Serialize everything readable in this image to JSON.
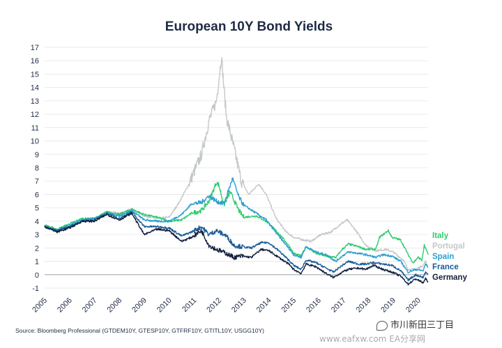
{
  "chart_data": {
    "type": "line",
    "title": "European 10Y Bond Yields",
    "xlabel": "",
    "ylabel": "",
    "x_range": [
      2005,
      2020.4
    ],
    "ylim": [
      -1,
      17
    ],
    "y_ticks": [
      "-1",
      "0",
      "1",
      "2",
      "3",
      "4",
      "5",
      "6",
      "7",
      "8",
      "9",
      "10",
      "11",
      "12",
      "13",
      "14",
      "15",
      "16",
      "17"
    ],
    "x_ticks": [
      "2005",
      "2006",
      "2007",
      "2008",
      "2009",
      "2010",
      "2011",
      "2012",
      "2013",
      "2014",
      "2015",
      "2016",
      "2017",
      "2018",
      "2019",
      "2020"
    ],
    "grid": "horizontal",
    "legend_placement": "right",
    "series": [
      {
        "name": "Italy",
        "color": "#2ecc71",
        "points": [
          [
            2005,
            3.7
          ],
          [
            2005.5,
            3.4
          ],
          [
            2006,
            3.8
          ],
          [
            2006.5,
            4.2
          ],
          [
            2007,
            4.2
          ],
          [
            2007.5,
            4.7
          ],
          [
            2008,
            4.5
          ],
          [
            2008.5,
            4.9
          ],
          [
            2009,
            4.5
          ],
          [
            2009.5,
            4.3
          ],
          [
            2010,
            4.0
          ],
          [
            2010.5,
            4.1
          ],
          [
            2010.9,
            4.6
          ],
          [
            2011.3,
            4.8
          ],
          [
            2011.6,
            5.5
          ],
          [
            2011.9,
            6.9
          ],
          [
            2012,
            6.7
          ],
          [
            2012.2,
            5.2
          ],
          [
            2012.45,
            6.2
          ],
          [
            2012.8,
            4.8
          ],
          [
            2013,
            4.3
          ],
          [
            2013.5,
            4.4
          ],
          [
            2013.9,
            4.0
          ],
          [
            2014.4,
            3.1
          ],
          [
            2014.8,
            2.2
          ],
          [
            2015,
            1.6
          ],
          [
            2015.3,
            1.4
          ],
          [
            2015.5,
            2.1
          ],
          [
            2015.9,
            1.6
          ],
          [
            2016.3,
            1.4
          ],
          [
            2016.7,
            1.3
          ],
          [
            2016.95,
            1.9
          ],
          [
            2017.2,
            2.3
          ],
          [
            2017.6,
            2.1
          ],
          [
            2017.9,
            1.9
          ],
          [
            2018.3,
            1.9
          ],
          [
            2018.45,
            2.8
          ],
          [
            2018.8,
            3.3
          ],
          [
            2018.95,
            2.8
          ],
          [
            2019.3,
            2.6
          ],
          [
            2019.6,
            1.5
          ],
          [
            2019.8,
            0.9
          ],
          [
            2020,
            1.3
          ],
          [
            2020.15,
            1.1
          ],
          [
            2020.25,
            2.2
          ],
          [
            2020.4,
            1.5
          ]
        ]
      },
      {
        "name": "Portugal",
        "color": "#c4c7ca",
        "points": [
          [
            2005,
            3.6
          ],
          [
            2005.5,
            3.3
          ],
          [
            2006,
            3.7
          ],
          [
            2006.5,
            4.1
          ],
          [
            2007,
            4.2
          ],
          [
            2007.5,
            4.7
          ],
          [
            2008,
            4.6
          ],
          [
            2008.5,
            4.9
          ],
          [
            2009,
            4.4
          ],
          [
            2009.5,
            4.2
          ],
          [
            2010,
            4.3
          ],
          [
            2010.4,
            5.4
          ],
          [
            2010.8,
            6.8
          ],
          [
            2011.3,
            9.0
          ],
          [
            2011.6,
            11.5
          ],
          [
            2011.9,
            13.0
          ],
          [
            2012.1,
            16.3
          ],
          [
            2012.3,
            11.8
          ],
          [
            2012.6,
            9.5
          ],
          [
            2012.9,
            7.0
          ],
          [
            2013.2,
            6.0
          ],
          [
            2013.6,
            6.8
          ],
          [
            2013.9,
            6.0
          ],
          [
            2014.3,
            4.2
          ],
          [
            2014.7,
            3.2
          ],
          [
            2015,
            2.8
          ],
          [
            2015.4,
            2.6
          ],
          [
            2015.7,
            2.5
          ],
          [
            2016.1,
            3.0
          ],
          [
            2016.5,
            3.2
          ],
          [
            2016.9,
            3.8
          ],
          [
            2017.15,
            4.1
          ],
          [
            2017.5,
            3.3
          ],
          [
            2017.9,
            2.2
          ],
          [
            2018.3,
            1.8
          ],
          [
            2018.7,
            1.9
          ],
          [
            2019,
            1.7
          ],
          [
            2019.4,
            1.1
          ],
          [
            2019.6,
            0.4
          ],
          [
            2019.9,
            0.4
          ],
          [
            2020.2,
            0.7
          ],
          [
            2020.3,
            1.0
          ],
          [
            2020.4,
            0.5
          ]
        ]
      },
      {
        "name": "Spain",
        "color": "#2b9fd0",
        "points": [
          [
            2005,
            3.6
          ],
          [
            2005.5,
            3.3
          ],
          [
            2006,
            3.7
          ],
          [
            2006.5,
            4.1
          ],
          [
            2007,
            4.2
          ],
          [
            2007.5,
            4.6
          ],
          [
            2008,
            4.4
          ],
          [
            2008.5,
            4.8
          ],
          [
            2009,
            4.1
          ],
          [
            2009.5,
            4.0
          ],
          [
            2010,
            4.0
          ],
          [
            2010.5,
            4.5
          ],
          [
            2010.9,
            5.3
          ],
          [
            2011.3,
            5.4
          ],
          [
            2011.6,
            5.9
          ],
          [
            2011.9,
            5.5
          ],
          [
            2012.2,
            5.3
          ],
          [
            2012.55,
            7.2
          ],
          [
            2012.8,
            5.8
          ],
          [
            2013,
            5.2
          ],
          [
            2013.5,
            4.6
          ],
          [
            2013.9,
            4.1
          ],
          [
            2014.4,
            2.9
          ],
          [
            2014.8,
            2.0
          ],
          [
            2015,
            1.5
          ],
          [
            2015.3,
            1.3
          ],
          [
            2015.5,
            2.1
          ],
          [
            2015.9,
            1.7
          ],
          [
            2016.3,
            1.5
          ],
          [
            2016.7,
            1.0
          ],
          [
            2016.95,
            1.4
          ],
          [
            2017.2,
            1.7
          ],
          [
            2017.6,
            1.6
          ],
          [
            2017.9,
            1.5
          ],
          [
            2018.3,
            1.3
          ],
          [
            2018.6,
            1.5
          ],
          [
            2018.95,
            1.4
          ],
          [
            2019.3,
            1.0
          ],
          [
            2019.6,
            0.2
          ],
          [
            2019.9,
            0.4
          ],
          [
            2020.2,
            0.3
          ],
          [
            2020.3,
            0.8
          ],
          [
            2020.4,
            0.6
          ]
        ]
      },
      {
        "name": "France",
        "color": "#1a5c97",
        "points": [
          [
            2005,
            3.6
          ],
          [
            2005.5,
            3.3
          ],
          [
            2006,
            3.6
          ],
          [
            2006.5,
            4.0
          ],
          [
            2007,
            4.1
          ],
          [
            2007.5,
            4.6
          ],
          [
            2008,
            4.2
          ],
          [
            2008.5,
            4.7
          ],
          [
            2009,
            3.6
          ],
          [
            2009.5,
            3.6
          ],
          [
            2010,
            3.5
          ],
          [
            2010.5,
            2.9
          ],
          [
            2010.9,
            3.2
          ],
          [
            2011.3,
            3.6
          ],
          [
            2011.6,
            3.0
          ],
          [
            2011.9,
            3.3
          ],
          [
            2012.3,
            2.9
          ],
          [
            2012.6,
            2.2
          ],
          [
            2012.9,
            2.1
          ],
          [
            2013.3,
            2.0
          ],
          [
            2013.7,
            2.4
          ],
          [
            2014,
            2.4
          ],
          [
            2014.4,
            1.8
          ],
          [
            2014.8,
            1.1
          ],
          [
            2015,
            0.7
          ],
          [
            2015.3,
            0.4
          ],
          [
            2015.5,
            1.1
          ],
          [
            2015.9,
            0.9
          ],
          [
            2016.3,
            0.5
          ],
          [
            2016.6,
            0.2
          ],
          [
            2016.95,
            0.7
          ],
          [
            2017.2,
            1.0
          ],
          [
            2017.6,
            0.8
          ],
          [
            2017.9,
            0.8
          ],
          [
            2018.2,
            0.9
          ],
          [
            2018.6,
            0.8
          ],
          [
            2018.95,
            0.7
          ],
          [
            2019.3,
            0.3
          ],
          [
            2019.6,
            -0.4
          ],
          [
            2019.9,
            0.0
          ],
          [
            2020.2,
            -0.2
          ],
          [
            2020.3,
            0.2
          ],
          [
            2020.4,
            0.0
          ]
        ]
      },
      {
        "name": "Germany",
        "color": "#14213d",
        "points": [
          [
            2005,
            3.6
          ],
          [
            2005.5,
            3.2
          ],
          [
            2006,
            3.5
          ],
          [
            2006.5,
            4.0
          ],
          [
            2007,
            4.0
          ],
          [
            2007.5,
            4.5
          ],
          [
            2008,
            4.1
          ],
          [
            2008.5,
            4.6
          ],
          [
            2009,
            3.0
          ],
          [
            2009.5,
            3.4
          ],
          [
            2010,
            3.3
          ],
          [
            2010.5,
            2.5
          ],
          [
            2010.9,
            2.8
          ],
          [
            2011.3,
            3.3
          ],
          [
            2011.6,
            2.2
          ],
          [
            2011.9,
            1.9
          ],
          [
            2012.3,
            1.6
          ],
          [
            2012.6,
            1.3
          ],
          [
            2012.9,
            1.4
          ],
          [
            2013.3,
            1.3
          ],
          [
            2013.7,
            1.9
          ],
          [
            2014,
            1.8
          ],
          [
            2014.4,
            1.3
          ],
          [
            2014.8,
            0.8
          ],
          [
            2015,
            0.4
          ],
          [
            2015.3,
            0.1
          ],
          [
            2015.5,
            0.8
          ],
          [
            2015.9,
            0.6
          ],
          [
            2016.3,
            0.1
          ],
          [
            2016.6,
            -0.2
          ],
          [
            2016.95,
            0.2
          ],
          [
            2017.2,
            0.4
          ],
          [
            2017.6,
            0.5
          ],
          [
            2017.9,
            0.4
          ],
          [
            2018.2,
            0.7
          ],
          [
            2018.6,
            0.4
          ],
          [
            2018.95,
            0.2
          ],
          [
            2019.3,
            -0.1
          ],
          [
            2019.6,
            -0.7
          ],
          [
            2019.9,
            -0.3
          ],
          [
            2020.2,
            -0.6
          ],
          [
            2020.3,
            -0.3
          ],
          [
            2020.4,
            -0.5
          ]
        ]
      }
    ]
  },
  "source": "Source: Bloomberg Professional (GTDEM10Y, GTESP10Y, GTFRF10Y, GTITL10Y, USGG10Y)",
  "watermark": {
    "text": "市川新田三丁目",
    "subtext": "www.eafxw.com  EA分享网",
    "icon": "wechat-icon"
  }
}
